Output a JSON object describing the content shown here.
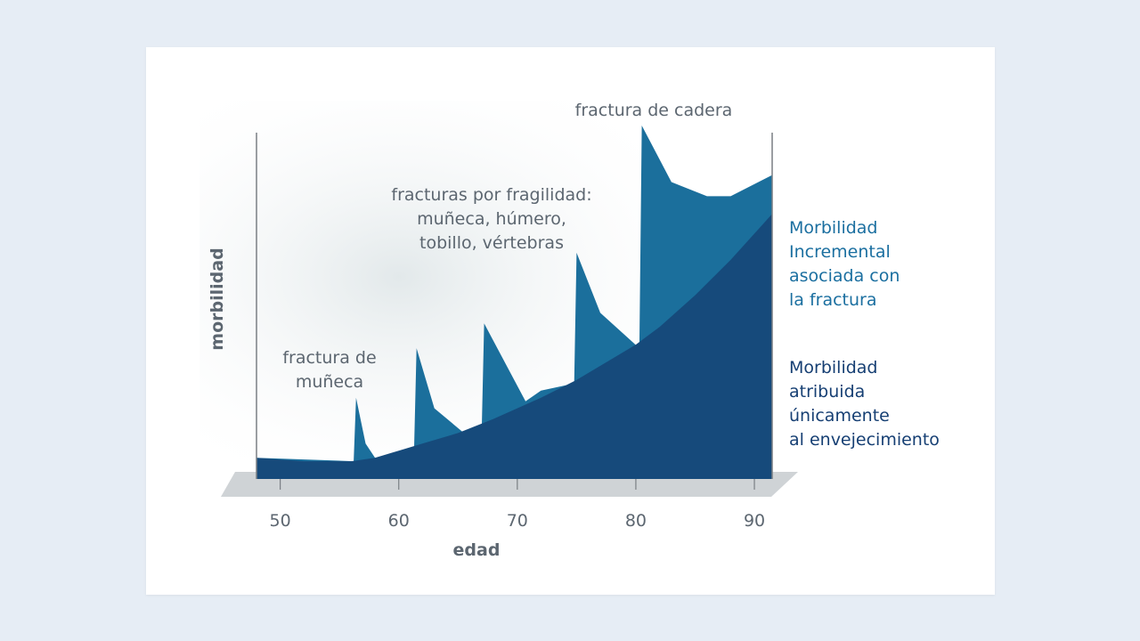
{
  "chart_data": {
    "type": "area",
    "xlabel": "edad",
    "ylabel": "morbilidad",
    "x_ticks": [
      50,
      60,
      70,
      80,
      90
    ],
    "xlim": [
      48,
      91.5
    ],
    "grid": false,
    "legend_placement": "right",
    "colors": {
      "aging": "#164a7b",
      "incremental": "#1b6f9c",
      "platform": "#cfd3d6",
      "axis": "#7a7f84"
    },
    "series": [
      {
        "name": "Morbilidad atribuida únicamente al envejecimiento",
        "label_lines": [
          "Morbilidad",
          "atribuida",
          "únicamente",
          "al envejecimiento"
        ],
        "x": [
          48,
          52,
          56,
          58,
          60,
          62,
          65,
          68,
          70,
          72,
          75,
          78,
          80,
          82,
          85,
          88,
          91.5
        ],
        "y": [
          0.06,
          0.05,
          0.05,
          0.06,
          0.08,
          0.1,
          0.13,
          0.17,
          0.2,
          0.23,
          0.28,
          0.34,
          0.38,
          0.43,
          0.52,
          0.62,
          0.75
        ]
      },
      {
        "name": "Morbilidad Incremental asociada con la fractura",
        "label_lines": [
          "Morbilidad",
          "Incremental",
          "asociada con",
          "la fractura"
        ],
        "x": [
          48,
          56.2,
          56.4,
          57.2,
          58,
          61.3,
          61.5,
          63,
          65.5,
          67,
          67.2,
          70.7,
          72,
          74.8,
          75,
          77,
          80.3,
          80.5,
          83,
          86,
          88,
          91.5
        ],
        "y": [
          0.06,
          0.05,
          0.23,
          0.1,
          0.06,
          0.09,
          0.37,
          0.2,
          0.13,
          0.14,
          0.44,
          0.22,
          0.25,
          0.27,
          0.64,
          0.47,
          0.37,
          1.0,
          0.84,
          0.8,
          0.8,
          0.86
        ]
      }
    ],
    "annotations": [
      {
        "id": "wrist",
        "lines": [
          "fractura de",
          "muñeca"
        ],
        "x": 56.4
      },
      {
        "id": "fragility",
        "lines": [
          "fracturas por fragilidad:",
          "muñeca, húmero,",
          "tobillo, vértebras"
        ],
        "x": 67
      },
      {
        "id": "hip",
        "lines": [
          "fractura de cadera"
        ],
        "x": 80.5
      }
    ]
  }
}
